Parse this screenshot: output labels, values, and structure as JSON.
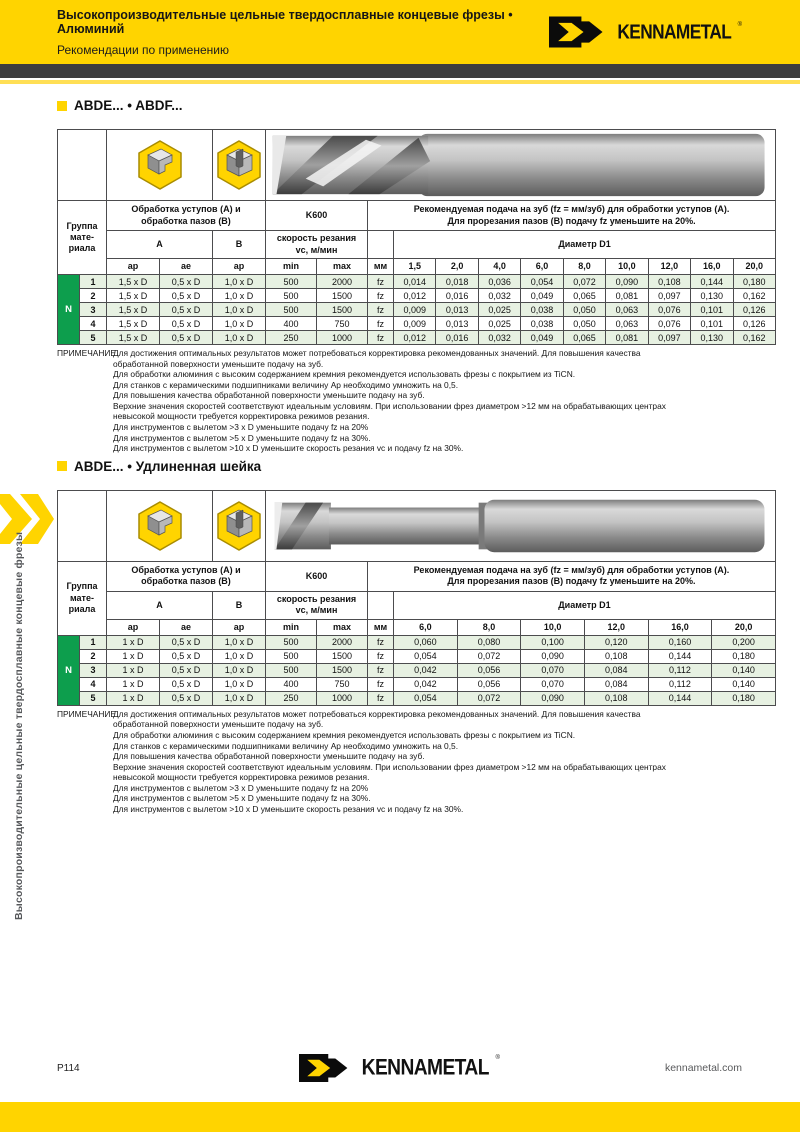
{
  "header": {
    "title": "Высокопроизводительные цельные твердосплавные концевые фрезы • Алюминий",
    "subtitle": "Рекомендации по применению",
    "brand": "KENNAMETAL",
    "reg": "®"
  },
  "sidebar": {
    "vertical_text": "Высокопроизводительные цельные твердосплавные концевые фрезы"
  },
  "colors": {
    "brand_yellow": "#ffd400",
    "divider_dark": "#3d3d3f",
    "material_green": "#0d9e4d",
    "row_stripe_green": "#e7f1e2"
  },
  "sections": [
    {
      "title": "ABDE... • ABDF...",
      "table": {
        "header": {
          "group_label": "Группа\nмате-\nриала",
          "machining_label": "Обработка уступов (A) и\nобработка пазов (B)",
          "grade": "K600",
          "feed_note": "Рекомендуемая подача на зуб (fz = мм/зуб) для обработки уступов (A).\nДля прорезания пазов (B) подачу fz уменьшите на 20%.",
          "col_a": "A",
          "col_b": "B",
          "speed_label": "скорость резания\nvc, м/мин",
          "diameter_label": "Диаметр D1",
          "sub": [
            "ap",
            "ae",
            "ap",
            "min",
            "max",
            "мм"
          ],
          "diameters": [
            "1,5",
            "2,0",
            "4,0",
            "6,0",
            "8,0",
            "10,0",
            "12,0",
            "16,0",
            "20,0"
          ]
        },
        "group": "N",
        "rows": [
          {
            "num": "1",
            "ap_a": "1,5 x D",
            "ae": "0,5 x D",
            "ap_b": "1,0 x D",
            "vc_min": "500",
            "vc_max": "2000",
            "unit": "fz",
            "feeds": [
              "0,014",
              "0,018",
              "0,036",
              "0,054",
              "0,072",
              "0,090",
              "0,108",
              "0,144",
              "0,180"
            ]
          },
          {
            "num": "2",
            "ap_a": "1,5 x D",
            "ae": "0,5 x D",
            "ap_b": "1,0 x D",
            "vc_min": "500",
            "vc_max": "1500",
            "unit": "fz",
            "feeds": [
              "0,012",
              "0,016",
              "0,032",
              "0,049",
              "0,065",
              "0,081",
              "0,097",
              "0,130",
              "0,162"
            ]
          },
          {
            "num": "3",
            "ap_a": "1,5 x D",
            "ae": "0,5 x D",
            "ap_b": "1,0 x D",
            "vc_min": "500",
            "vc_max": "1500",
            "unit": "fz",
            "feeds": [
              "0,009",
              "0,013",
              "0,025",
              "0,038",
              "0,050",
              "0,063",
              "0,076",
              "0,101",
              "0,126"
            ]
          },
          {
            "num": "4",
            "ap_a": "1,5 x D",
            "ae": "0,5 x D",
            "ap_b": "1,0 x D",
            "vc_min": "400",
            "vc_max": "750",
            "unit": "fz",
            "feeds": [
              "0,009",
              "0,013",
              "0,025",
              "0,038",
              "0,050",
              "0,063",
              "0,076",
              "0,101",
              "0,126"
            ]
          },
          {
            "num": "5",
            "ap_a": "1,5 x D",
            "ae": "0,5 x D",
            "ap_b": "1,0 x D",
            "vc_min": "250",
            "vc_max": "1000",
            "unit": "fz",
            "feeds": [
              "0,012",
              "0,016",
              "0,032",
              "0,049",
              "0,065",
              "0,081",
              "0,097",
              "0,130",
              "0,162"
            ]
          }
        ]
      },
      "note_label": "ПРИМЕЧАНИЕ.",
      "notes": [
        "Для достижения оптимальных результатов может потребоваться корректировка рекомендованных значений. Для повышения качества",
        "обработанной поверхности уменьшите подачу на зуб.",
        "Для обработки алюминия с высоким содержанием кремния рекомендуется использовать фрезы с покрытием из TiCN.",
        "Для станков с керамическими подшипниками величину Ap необходимо умножить на 0,5.",
        "Для повышения качества обработанной поверхности уменьшите подачу на зуб.",
        "Верхние значения скоростей соответствуют идеальным условиям. При использовании фрез диаметром >12 мм на обрабатывающих центрах",
        "невысокой мощности требуется корректировка режимов резания.",
        "Для инструментов с вылетом >3 x D уменьшите подачу fz на 20%",
        "Для инструментов с вылетом >5 x D уменьшите подачу fz на 30%.",
        "Для инструментов с вылетом >10 x D уменьшите скорость резания vc и подачу fz на 30%."
      ]
    },
    {
      "title": "ABDE... • Удлиненная шейка",
      "table": {
        "header": {
          "group_label": "Группа\nмате-\nриала",
          "machining_label": "Обработка уступов (A) и\nобработка пазов (B)",
          "grade": "K600",
          "feed_note": "Рекомендуемая подача на зуб (fz = мм/зуб) для обработки уступов (A).\nДля прорезания пазов (B) подачу fz уменьшите на 20%.",
          "col_a": "A",
          "col_b": "B",
          "speed_label": "скорость резания\nvc, м/мин",
          "diameter_label": "Диаметр D1",
          "sub": [
            "ap",
            "ae",
            "ap",
            "min",
            "max",
            "мм"
          ],
          "diameters": [
            "6,0",
            "8,0",
            "10,0",
            "12,0",
            "16,0",
            "20,0"
          ]
        },
        "group": "N",
        "rows": [
          {
            "num": "1",
            "ap_a": "1 x D",
            "ae": "0,5 x D",
            "ap_b": "1,0 x D",
            "vc_min": "500",
            "vc_max": "2000",
            "unit": "fz",
            "feeds": [
              "0,060",
              "0,080",
              "0,100",
              "0,120",
              "0,160",
              "0,200"
            ]
          },
          {
            "num": "2",
            "ap_a": "1 x D",
            "ae": "0,5 x D",
            "ap_b": "1,0 x D",
            "vc_min": "500",
            "vc_max": "1500",
            "unit": "fz",
            "feeds": [
              "0,054",
              "0,072",
              "0,090",
              "0,108",
              "0,144",
              "0,180"
            ]
          },
          {
            "num": "3",
            "ap_a": "1 x D",
            "ae": "0,5 x D",
            "ap_b": "1,0 x D",
            "vc_min": "500",
            "vc_max": "1500",
            "unit": "fz",
            "feeds": [
              "0,042",
              "0,056",
              "0,070",
              "0,084",
              "0,112",
              "0,140"
            ]
          },
          {
            "num": "4",
            "ap_a": "1 x D",
            "ae": "0,5 x D",
            "ap_b": "1,0 x D",
            "vc_min": "400",
            "vc_max": "750",
            "unit": "fz",
            "feeds": [
              "0,042",
              "0,056",
              "0,070",
              "0,084",
              "0,112",
              "0,140"
            ]
          },
          {
            "num": "5",
            "ap_a": "1 x D",
            "ae": "0,5 x D",
            "ap_b": "1,0 x D",
            "vc_min": "250",
            "vc_max": "1000",
            "unit": "fz",
            "feeds": [
              "0,054",
              "0,072",
              "0,090",
              "0,108",
              "0,144",
              "0,180"
            ]
          }
        ]
      },
      "note_label": "ПРИМЕЧАНИЕ.",
      "notes": [
        "Для достижения оптимальных результатов может потребоваться корректировка рекомендованных значений. Для повышения качества",
        "обработанной поверхности уменьшите подачу на зуб.",
        "Для обработки алюминия с высоким содержанием кремния рекомендуется использовать фрезы с покрытием из TiCN.",
        "Для станков с керамическими подшипниками величину Ap необходимо умножить на 0,5.",
        "Для повышения качества обработанной поверхности уменьшите подачу на зуб.",
        "Верхние значения скоростей соответствуют идеальным условиям. При использовании фрез диаметром >12 мм на обрабатывающих центрах",
        "невысокой мощности требуется корректировка режимов резания.",
        "Для инструментов с вылетом >3 x D уменьшите подачу fz на 20%",
        "Для инструментов с вылетом >5 x D уменьшите подачу fz на 30%.",
        "Для инструментов с вылетом >10 x D уменьшите скорость резания vc и подачу fz на 30%."
      ]
    }
  ],
  "footer": {
    "page": "P114",
    "brand": "KENNAMETAL",
    "reg": "®",
    "site": "kennametal.com"
  }
}
